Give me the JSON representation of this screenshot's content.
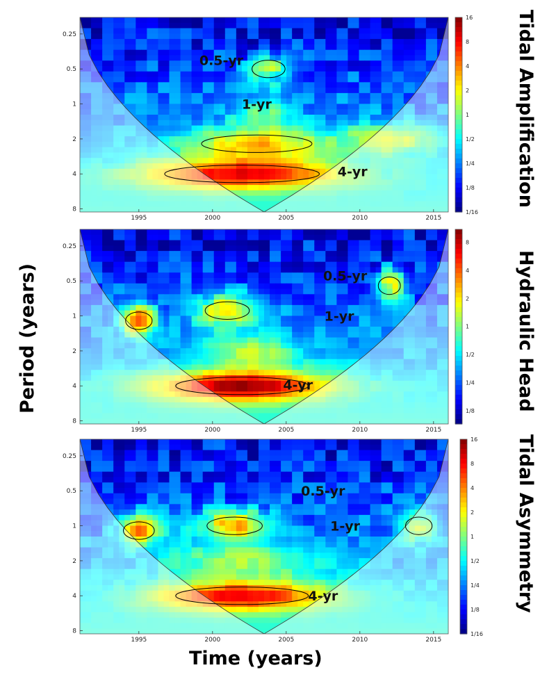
{
  "figure": {
    "y_axis_title": "Period (years)",
    "x_axis_title": "Time (years)"
  },
  "chart_data": [
    {
      "type": "heatmap",
      "panel_title": "Tidal Amplification",
      "xlabel": "Time (years)",
      "ylabel": "Period (years)",
      "x_ticks": [
        "1995",
        "2000",
        "2005",
        "2010",
        "2015"
      ],
      "xlim": [
        1991,
        2016
      ],
      "y_ticks": [
        "0.25",
        "0.5",
        "1",
        "2",
        "4",
        "8"
      ],
      "y_scale": "log2",
      "ylim": [
        0.18,
        8.5
      ],
      "colorbar_ticks": [
        "16",
        "8",
        "4",
        "2",
        "1",
        "1/2",
        "1/4",
        "1/8",
        "1/16"
      ],
      "colorbar_range": [
        0.0625,
        16
      ],
      "colors": {
        "low": "#00007f",
        "mid": "#7fff7f",
        "high": "#7f0000"
      },
      "annotations": [
        {
          "text": "0.5-yr",
          "x": 2000.6,
          "period": 0.42
        },
        {
          "text": "1-yr",
          "x": 2003.0,
          "period": 1.0
        },
        {
          "text": "4-yr",
          "x": 2009.5,
          "period": 3.8
        }
      ],
      "bands": [
        {
          "period": 4.0,
          "x_center": 2002,
          "x_width": 7,
          "power": 14
        },
        {
          "period": 2.2,
          "x_center": 2003,
          "x_width": 5,
          "power": 6
        },
        {
          "period": 1.2,
          "x_center": 2003.5,
          "x_width": 2,
          "power": 3
        },
        {
          "period": 0.5,
          "x_center": 2003.8,
          "x_width": 1.5,
          "power": 5
        },
        {
          "period": 2.0,
          "x_center": 2012,
          "x_width": 3,
          "power": 4
        }
      ]
    },
    {
      "type": "heatmap",
      "panel_title": "Hydraulic Head",
      "xlabel": "Time (years)",
      "ylabel": "Period (years)",
      "x_ticks": [
        "1995",
        "2000",
        "2005",
        "2010",
        "2015"
      ],
      "xlim": [
        1991,
        2016
      ],
      "y_ticks": [
        "0.25",
        "0.5",
        "1",
        "2",
        "4",
        "8"
      ],
      "y_scale": "log2",
      "ylim": [
        0.18,
        8.5
      ],
      "colorbar_ticks": [
        "8",
        "4",
        "2",
        "1",
        "1/2",
        "1/4",
        "1/8"
      ],
      "colorbar_range": [
        0.09,
        11
      ],
      "colors": {
        "low": "#00007f",
        "mid": "#7fff7f",
        "high": "#7f0000"
      },
      "annotations": [
        {
          "text": "0.5-yr",
          "x": 2009.0,
          "period": 0.45
        },
        {
          "text": "1-yr",
          "x": 2008.6,
          "period": 1.0
        },
        {
          "text": "4-yr",
          "x": 2005.8,
          "period": 3.9
        }
      ],
      "bands": [
        {
          "period": 4.0,
          "x_center": 2002,
          "x_width": 6,
          "power": 14
        },
        {
          "period": 1.1,
          "x_center": 1995,
          "x_width": 1.2,
          "power": 10
        },
        {
          "period": 0.9,
          "x_center": 2001,
          "x_width": 2,
          "power": 7
        },
        {
          "period": 0.55,
          "x_center": 2012,
          "x_width": 1,
          "power": 6
        },
        {
          "period": 2.0,
          "x_center": 2002.5,
          "x_width": 3,
          "power": 3
        }
      ]
    },
    {
      "type": "heatmap",
      "panel_title": "Tidal Asymmetry",
      "xlabel": "Time (years)",
      "ylabel": "Period (years)",
      "x_ticks": [
        "1995",
        "2000",
        "2005",
        "2010",
        "2015"
      ],
      "xlim": [
        1991,
        2016
      ],
      "y_ticks": [
        "0.25",
        "0.5",
        "1",
        "2",
        "4",
        "8"
      ],
      "y_scale": "log2",
      "ylim": [
        0.18,
        8.5
      ],
      "colorbar_ticks": [
        "16",
        "8",
        "4",
        "2",
        "1",
        "1/2",
        "1/4",
        "1/8",
        "1/16"
      ],
      "colorbar_range": [
        0.0625,
        16
      ],
      "colors": {
        "low": "#00007f",
        "mid": "#7fff7f",
        "high": "#7f0000"
      },
      "annotations": [
        {
          "text": "0.5-yr",
          "x": 2007.5,
          "period": 0.5
        },
        {
          "text": "1-yr",
          "x": 2009.0,
          "period": 1.0
        },
        {
          "text": "4-yr",
          "x": 2007.5,
          "period": 4.0
        }
      ],
      "bands": [
        {
          "period": 4.0,
          "x_center": 2002,
          "x_width": 6,
          "power": 14
        },
        {
          "period": 1.1,
          "x_center": 1995,
          "x_width": 1.4,
          "power": 10
        },
        {
          "period": 1.0,
          "x_center": 2001.5,
          "x_width": 2.5,
          "power": 9
        },
        {
          "period": 1.0,
          "x_center": 2014,
          "x_width": 1.2,
          "power": 6
        },
        {
          "period": 2.0,
          "x_center": 2002,
          "x_width": 5,
          "power": 3
        }
      ]
    }
  ]
}
